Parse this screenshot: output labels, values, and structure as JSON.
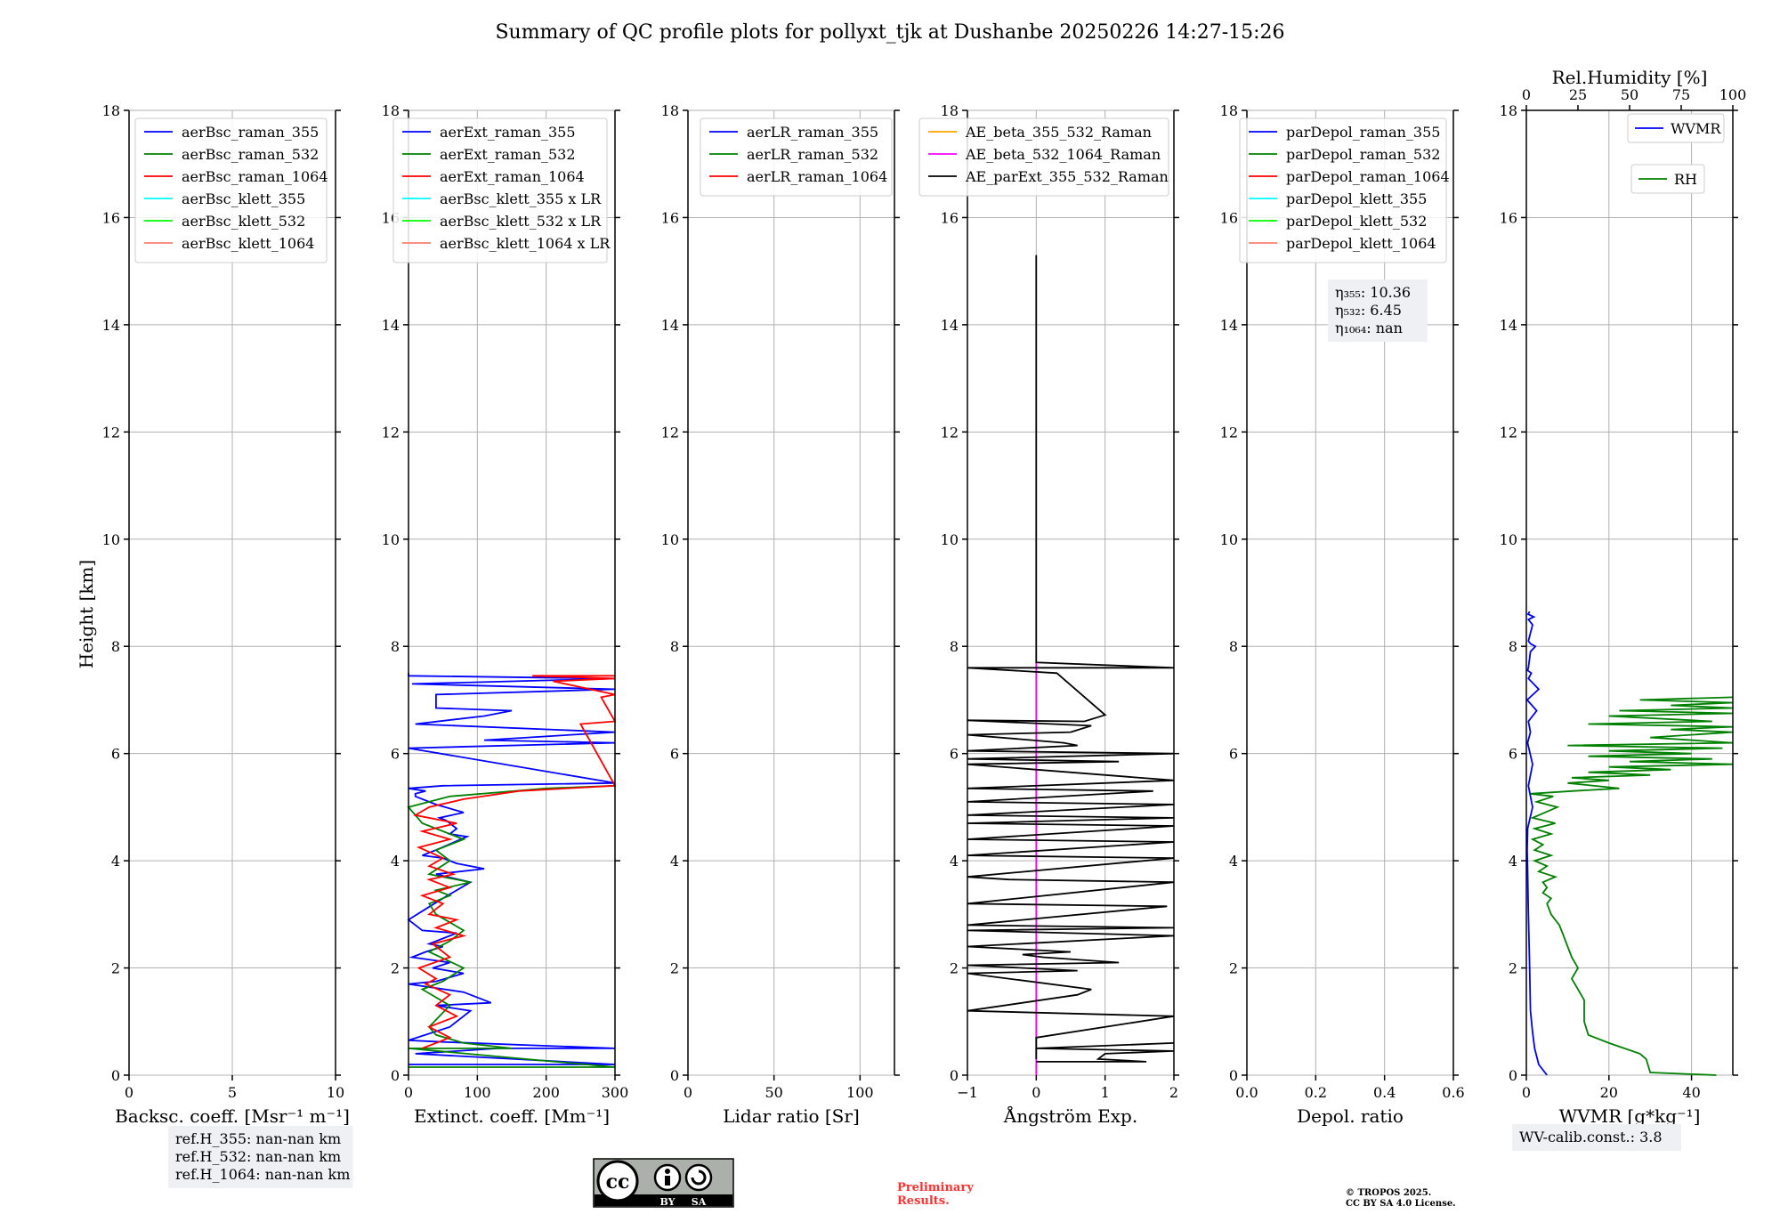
{
  "title": "Summary of QC profile plots for pollyxt_tjk at Dushanbe 20250226 14:27-15:26",
  "shared_ylabel": "Height [km]",
  "chart_data": [
    {
      "type": "line",
      "xlabel": "Backsc. coeff. [Msr⁻¹ m⁻¹]",
      "xlim": [
        0,
        10
      ],
      "xticks": [
        0,
        5,
        10
      ],
      "ylim": [
        0,
        18
      ],
      "yticks": [
        0,
        2,
        4,
        6,
        8,
        10,
        12,
        14,
        16,
        18
      ],
      "grid": true,
      "legend_position": "top-left",
      "series": [
        {
          "name": "aerBsc_raman_355",
          "color": "#0000ff",
          "x": [],
          "y": []
        },
        {
          "name": "aerBsc_raman_532",
          "color": "#008000",
          "x": [],
          "y": []
        },
        {
          "name": "aerBsc_raman_1064",
          "color": "#ff0000",
          "x": [],
          "y": []
        },
        {
          "name": "aerBsc_klett_355",
          "color": "#00ffff",
          "x": [],
          "y": []
        },
        {
          "name": "aerBsc_klett_532",
          "color": "#00ff00",
          "x": [],
          "y": []
        },
        {
          "name": "aerBsc_klett_1064",
          "color": "#fa8072",
          "x": [],
          "y": []
        }
      ],
      "annotation": [
        "ref.H_355: nan-nan km",
        "ref.H_532: nan-nan km",
        "ref.H_1064: nan-nan km"
      ]
    },
    {
      "type": "line",
      "xlabel": "Extinct. coeff. [Mm⁻¹]",
      "xlim": [
        0,
        300
      ],
      "xticks": [
        0,
        100,
        200,
        300
      ],
      "ylim": [
        0,
        18
      ],
      "yticks": [
        0,
        2,
        4,
        6,
        8,
        10,
        12,
        14,
        16,
        18
      ],
      "grid": true,
      "legend_position": "top-left",
      "series": [
        {
          "name": "aerExt_raman_355",
          "color": "#0000ff",
          "x": [
            0,
            300,
            10,
            130,
            300,
            50,
            0,
            60,
            90,
            40,
            120,
            80,
            0,
            40,
            80,
            35,
            60,
            5,
            25,
            50,
            30,
            70,
            20,
            0,
            25,
            50,
            90,
            40,
            110,
            70,
            50,
            20,
            40,
            85,
            60,
            70,
            55,
            45,
            80,
            40,
            10,
            10,
            25,
            0,
            50,
            300,
            0,
            300,
            110,
            320,
            10,
            110,
            150,
            40,
            40,
            40,
            300,
            5,
            300,
            0,
            0
          ],
          "y": [
            0.2,
            0.2,
            0.4,
            0.5,
            0.5,
            0.62,
            0.65,
            0.9,
            1.2,
            1.3,
            1.35,
            1.55,
            1.7,
            1.75,
            1.9,
            2.0,
            2.1,
            2.2,
            2.3,
            2.4,
            2.45,
            2.65,
            2.7,
            2.9,
            3.1,
            3.3,
            3.6,
            3.75,
            3.85,
            3.95,
            4.05,
            4.1,
            4.2,
            4.45,
            4.5,
            4.6,
            4.75,
            4.8,
            4.9,
            5.05,
            5.2,
            5.25,
            5.3,
            5.35,
            5.4,
            5.45,
            6.1,
            6.2,
            6.25,
            6.4,
            6.55,
            6.7,
            6.8,
            6.85,
            7.0,
            7.1,
            7.2,
            7.3,
            7.4,
            7.45,
            7.5
          ]
        },
        {
          "name": "aerExt_raman_532",
          "color": "#008000",
          "x": [
            0,
            300,
            0,
            150,
            80,
            40,
            30,
            60,
            20,
            50,
            80,
            30,
            60,
            80,
            40,
            30,
            60,
            40,
            90,
            30,
            60,
            40,
            80,
            20,
            0,
            60,
            200,
            300
          ],
          "y": [
            0.15,
            0.15,
            0.5,
            0.5,
            0.6,
            0.75,
            0.9,
            1.3,
            1.6,
            1.75,
            2.0,
            2.3,
            2.5,
            2.7,
            3.0,
            3.2,
            3.35,
            3.45,
            3.6,
            3.75,
            4.0,
            4.2,
            4.4,
            4.7,
            5.0,
            5.2,
            5.35,
            5.4
          ]
        },
        {
          "name": "aerExt_raman_1064",
          "color": "#ff0000",
          "x": [
            20,
            60,
            30,
            70,
            40,
            60,
            25,
            40,
            15,
            60,
            35,
            80,
            40,
            70,
            30,
            50,
            20,
            60,
            30,
            65,
            30,
            50,
            15,
            60,
            20,
            70,
            10,
            30,
            80,
            160,
            300,
            250,
            300,
            280,
            300,
            210,
            300,
            180,
            300
          ],
          "y": [
            0.5,
            0.7,
            0.9,
            1.1,
            1.3,
            1.5,
            1.7,
            1.8,
            2.0,
            2.2,
            2.45,
            2.6,
            2.75,
            2.9,
            3.0,
            3.2,
            3.35,
            3.5,
            3.65,
            3.75,
            3.9,
            4.05,
            4.25,
            4.4,
            4.55,
            4.7,
            4.85,
            5.0,
            5.15,
            5.3,
            5.4,
            6.55,
            6.6,
            7.05,
            7.1,
            7.35,
            7.4,
            7.45,
            7.45
          ]
        },
        {
          "name": "aerBsc_klett_355 x LR",
          "color": "#00ffff",
          "x": [],
          "y": []
        },
        {
          "name": "aerBsc_klett_532 x LR",
          "color": "#00ff00",
          "x": [],
          "y": []
        },
        {
          "name": "aerBsc_klett_1064 x LR",
          "color": "#fa8072",
          "x": [],
          "y": []
        }
      ]
    },
    {
      "type": "line",
      "xlabel": "Lidar ratio [Sr]",
      "xlim": [
        0,
        120
      ],
      "xticks": [
        0,
        50,
        100
      ],
      "ylim": [
        0,
        18
      ],
      "yticks": [
        0,
        2,
        4,
        6,
        8,
        10,
        12,
        14,
        16,
        18
      ],
      "grid": true,
      "legend_position": "top-left",
      "series": [
        {
          "name": "aerLR_raman_355",
          "color": "#0000ff",
          "x": [],
          "y": []
        },
        {
          "name": "aerLR_raman_532",
          "color": "#008000",
          "x": [],
          "y": []
        },
        {
          "name": "aerLR_raman_1064",
          "color": "#ff0000",
          "x": [],
          "y": []
        }
      ]
    },
    {
      "type": "line",
      "xlabel": "Ångström Exp.",
      "xlim": [
        -1,
        2
      ],
      "xticks": [
        -1,
        0,
        1,
        2
      ],
      "xticklabels": [
        "−1",
        "0",
        "1",
        "2"
      ],
      "ylim": [
        0,
        18
      ],
      "yticks": [
        0,
        2,
        4,
        6,
        8,
        10,
        12,
        14,
        16,
        18
      ],
      "grid": true,
      "legend_position": "top-left",
      "series": [
        {
          "name": "AE_beta_355_532_Raman",
          "color": "#ffa500",
          "x": [],
          "y": []
        },
        {
          "name": "AE_beta_532_1064_Raman",
          "color": "#ff00ff",
          "x": [
            0,
            0
          ],
          "y": [
            0,
            7.7
          ]
        },
        {
          "name": "AE_parExt_355_532_Raman",
          "color": "#000000",
          "x": [
            0,
            0,
            2,
            -1,
            0.3,
            1.0,
            0.7,
            -1,
            0.8,
            0.5,
            -1,
            0.4,
            0.6,
            -1,
            2,
            -1,
            1.2,
            -1,
            2,
            -1,
            1.7,
            -1,
            2,
            -1,
            2,
            -1,
            2,
            -1,
            2,
            -1,
            2,
            -1,
            -0.4,
            2,
            -1,
            1.9,
            -1,
            2,
            -1,
            2,
            -1,
            0.5,
            -0.2,
            0.1,
            1.2,
            -1,
            0.6,
            -1,
            0.8,
            0.6,
            -1,
            2,
            0,
            0
          ],
          "y": [
            15.3,
            7.7,
            7.6,
            7.6,
            7.5,
            6.72,
            6.6,
            6.62,
            6.52,
            6.4,
            6.35,
            6.2,
            6.15,
            6.05,
            6.0,
            5.9,
            5.85,
            5.8,
            5.5,
            5.35,
            5.3,
            5.1,
            5.05,
            4.85,
            4.8,
            4.7,
            4.65,
            4.4,
            4.35,
            4.1,
            4.05,
            3.7,
            3.65,
            3.6,
            3.2,
            3.15,
            2.8,
            2.75,
            2.7,
            2.6,
            2.4,
            2.3,
            2.25,
            2.2,
            2.1,
            2.05,
            1.95,
            1.9,
            1.6,
            1.5,
            1.2,
            1.1,
            0.7,
            0.3
          ]
        },
        {
          "name": "",
          "color": "#000000",
          "x": [
            0,
            1.6,
            0.9,
            1.0,
            2,
            0,
            2
          ],
          "y": [
            0.25,
            0.25,
            0.3,
            0.4,
            0.45,
            0.5,
            0.6
          ]
        }
      ]
    },
    {
      "type": "line",
      "xlabel": "Depol. ratio",
      "xlim": [
        0,
        0.6
      ],
      "xticks": [
        0.0,
        0.2,
        0.4,
        0.6
      ],
      "xticklabels": [
        "0.0",
        "0.2",
        "0.4",
        "0.6"
      ],
      "ylim": [
        0,
        18
      ],
      "yticks": [
        0,
        2,
        4,
        6,
        8,
        10,
        12,
        14,
        16,
        18
      ],
      "grid": true,
      "legend_position": "top-left",
      "series": [
        {
          "name": "parDepol_raman_355",
          "color": "#0000ff",
          "x": [],
          "y": []
        },
        {
          "name": "parDepol_raman_532",
          "color": "#008000",
          "x": [],
          "y": []
        },
        {
          "name": "parDepol_raman_1064",
          "color": "#ff0000",
          "x": [],
          "y": []
        },
        {
          "name": "parDepol_klett_355",
          "color": "#00ffff",
          "x": [],
          "y": []
        },
        {
          "name": "parDepol_klett_532",
          "color": "#00ff00",
          "x": [],
          "y": []
        },
        {
          "name": "parDepol_klett_1064",
          "color": "#fa8072",
          "x": [],
          "y": []
        }
      ],
      "annotation": [
        "η₃₅₅: 10.36",
        "η₅₃₂: 6.45",
        "η₁₀₆₄: nan"
      ]
    },
    {
      "type": "line",
      "xlabel": "WVMR [g*kg⁻¹]",
      "xlim": [
        0,
        50
      ],
      "xticks": [
        0,
        20,
        40
      ],
      "x2label": "Rel.Humidity [%]",
      "x2lim": [
        0,
        100
      ],
      "x2ticks": [
        0,
        25,
        50,
        75,
        100
      ],
      "ylim": [
        0,
        18
      ],
      "yticks": [
        0,
        2,
        4,
        6,
        8,
        10,
        12,
        14,
        16,
        18
      ],
      "grid": true,
      "legend_position": "top-right",
      "series": [
        {
          "name": "WVMR",
          "color": "#0000ff",
          "axis": "bottom",
          "x": [
            5,
            3,
            2,
            1.5,
            1,
            0.8,
            0.5,
            0.3,
            0.2,
            0.3,
            1.5,
            0.5,
            1.5,
            0.3,
            1.0,
            0.5,
            2.5,
            0.2,
            3,
            0.5,
            1.2,
            0.3,
            0.5,
            1.0,
            2.2,
            1.0,
            0.5,
            1.5,
            0.5,
            1.8,
            0.4,
            0.8
          ],
          "y": [
            0,
            0.2,
            0.5,
            0.8,
            1.2,
            2.0,
            3.0,
            3.8,
            4.2,
            4.6,
            5.0,
            5.4,
            5.8,
            6.2,
            6.4,
            6.6,
            6.8,
            7.0,
            7.2,
            7.4,
            7.5,
            7.55,
            7.6,
            7.9,
            8.0,
            8.05,
            8.1,
            8.4,
            8.5,
            8.55,
            8.6,
            8.65
          ]
        },
        {
          "name": "RH",
          "color": "#008000",
          "axis": "top",
          "x": [
            92,
            60,
            58,
            55,
            40,
            30,
            28,
            28,
            25,
            22,
            25,
            22,
            20,
            18,
            16,
            12,
            10,
            12,
            8,
            10,
            8,
            14,
            6,
            10,
            4,
            12,
            4,
            8,
            3,
            12,
            4,
            14,
            3,
            15,
            5,
            13,
            2,
            22,
            45,
            20,
            40,
            22,
            60,
            30,
            70,
            40,
            100,
            50,
            90,
            30,
            80,
            40,
            95,
            20,
            100,
            60,
            100,
            70,
            100,
            30,
            90,
            40,
            100,
            45,
            100,
            70,
            100,
            55,
            100
          ],
          "y": [
            0,
            0.05,
            0.3,
            0.4,
            0.6,
            0.75,
            1.0,
            1.4,
            1.6,
            1.8,
            2.0,
            2.2,
            2.4,
            2.6,
            2.8,
            3.0,
            3.2,
            3.3,
            3.4,
            3.5,
            3.6,
            3.7,
            3.8,
            3.9,
            4.0,
            4.1,
            4.2,
            4.3,
            4.4,
            4.5,
            4.6,
            4.7,
            4.8,
            5.0,
            5.1,
            5.2,
            5.25,
            5.3,
            5.35,
            5.45,
            5.5,
            5.55,
            5.6,
            5.65,
            5.7,
            5.75,
            5.8,
            5.85,
            5.9,
            5.95,
            6.0,
            6.05,
            6.1,
            6.15,
            6.2,
            6.3,
            6.4,
            6.45,
            6.5,
            6.55,
            6.6,
            6.7,
            6.75,
            6.8,
            6.85,
            6.9,
            6.95,
            7.0,
            7.05
          ]
        }
      ],
      "annotation": [
        "WV-calib.const.: 3.8"
      ]
    }
  ],
  "footer": {
    "license_badge": {
      "cc": "cc",
      "by": "BY",
      "sa": "SA"
    },
    "preliminary_line1": "Preliminary",
    "preliminary_line2": "Results.",
    "copyright_line1": "© TROPOS 2025.",
    "copyright_line2": "CC BY SA 4.0 License."
  },
  "colors": {
    "grid": "#b0b0b0",
    "annotation_bg": "#eef0f4",
    "preliminary": "#ff3030"
  }
}
